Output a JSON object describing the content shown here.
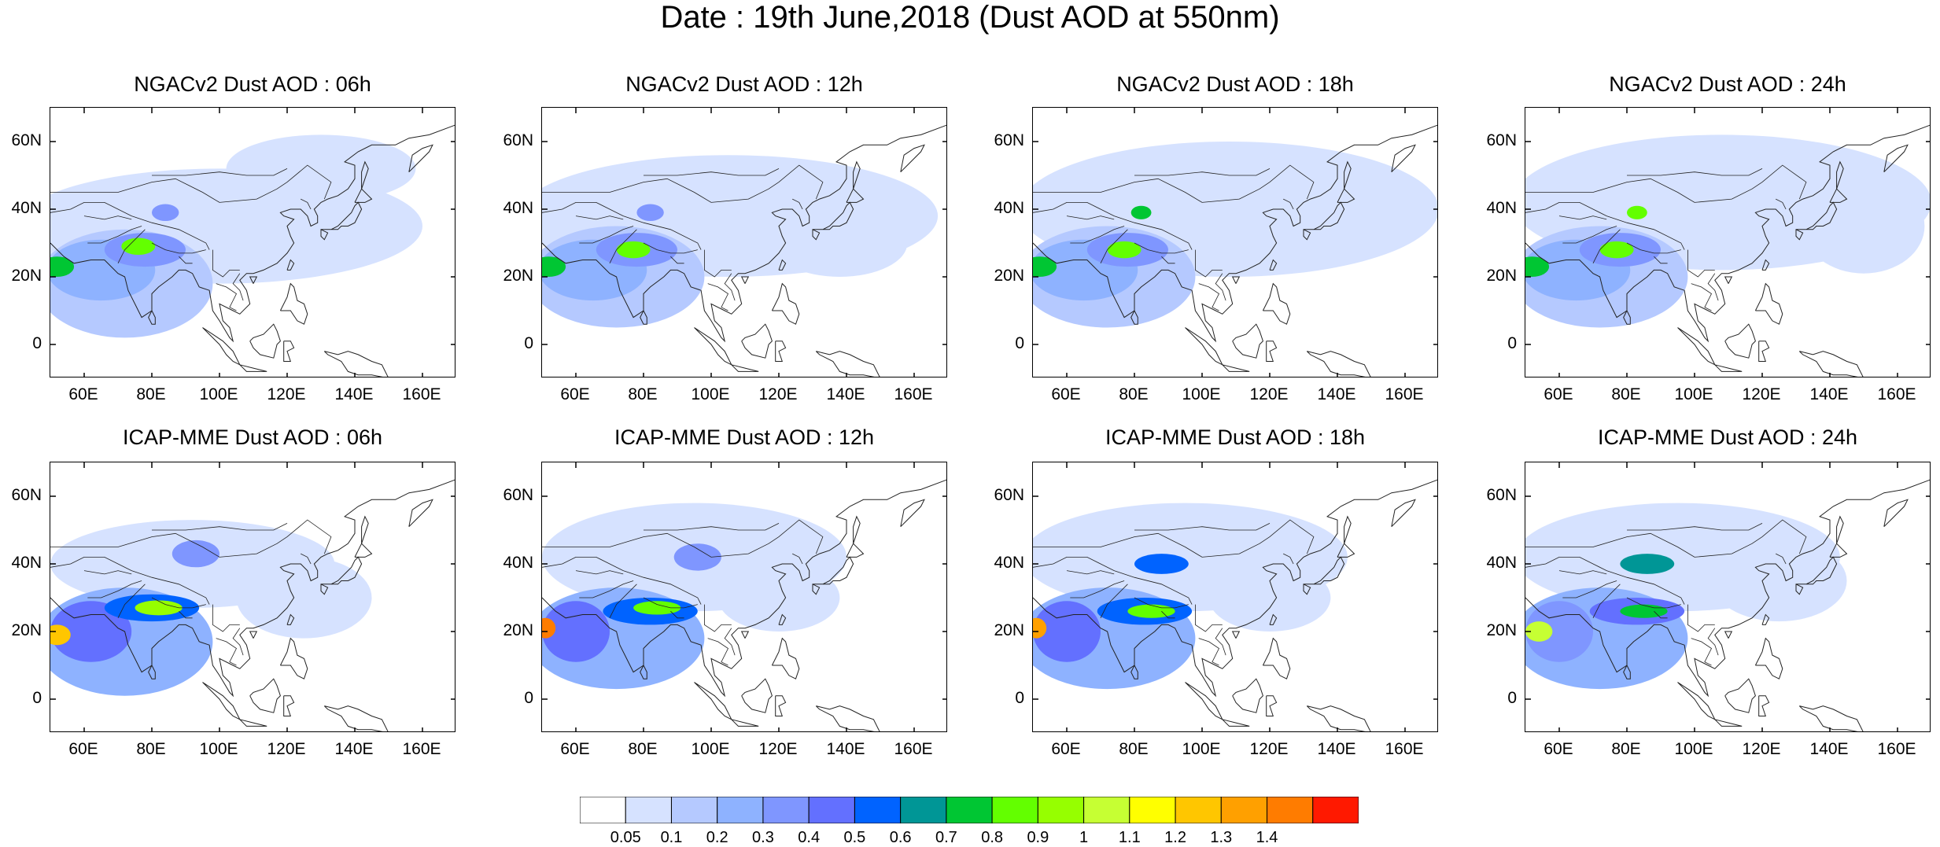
{
  "figure": {
    "title": "Date : 19th June,2018 (Dust AOD at 550nm)"
  },
  "panels": [
    {
      "title": "NGACv2 Dust AOD : 06h",
      "row": 0,
      "col": 0
    },
    {
      "title": "NGACv2 Dust AOD : 12h",
      "row": 0,
      "col": 1
    },
    {
      "title": "NGACv2 Dust AOD : 18h",
      "row": 0,
      "col": 2
    },
    {
      "title": "NGACv2 Dust AOD : 24h",
      "row": 0,
      "col": 3
    },
    {
      "title": "ICAP-MME Dust AOD : 06h",
      "row": 1,
      "col": 0
    },
    {
      "title": "ICAP-MME Dust AOD : 12h",
      "row": 1,
      "col": 1
    },
    {
      "title": "ICAP-MME Dust AOD : 18h",
      "row": 1,
      "col": 2
    },
    {
      "title": "ICAP-MME Dust AOD : 24h",
      "row": 1,
      "col": 3
    }
  ],
  "axes": {
    "lon_range": [
      50,
      170
    ],
    "lat_range": [
      -10,
      70
    ],
    "x_ticks": [
      {
        "value": 60,
        "label": "60E"
      },
      {
        "value": 80,
        "label": "80E"
      },
      {
        "value": 100,
        "label": "100E"
      },
      {
        "value": 120,
        "label": "120E"
      },
      {
        "value": 140,
        "label": "140E"
      },
      {
        "value": 160,
        "label": "160E"
      }
    ],
    "y_ticks": [
      {
        "value": 60,
        "label": "60N"
      },
      {
        "value": 40,
        "label": "40N"
      },
      {
        "value": 20,
        "label": "20N"
      },
      {
        "value": 0,
        "label": "0"
      }
    ]
  },
  "colorbar": {
    "colors": [
      "#ffffff",
      "#d6e2ff",
      "#b5c9ff",
      "#8eb2ff",
      "#7f96ff",
      "#6370ff",
      "#0063ff",
      "#009696",
      "#00c633",
      "#63ff00",
      "#96ff00",
      "#c6ff33",
      "#ffff00",
      "#ffc600",
      "#ffa000",
      "#ff7c00",
      "#ff1900"
    ],
    "levels": [
      "0.05",
      "0.1",
      "0.2",
      "0.3",
      "0.4",
      "0.5",
      "0.6",
      "0.7",
      "0.8",
      "0.9",
      "1",
      "1.1",
      "1.2",
      "1.3",
      "1.4"
    ]
  },
  "chart_data": {
    "type": "heatmap",
    "variable": "Dust AOD at 550nm",
    "date": "19th June,2018",
    "models": [
      "NGACv2",
      "ICAP-MME"
    ],
    "forecast_hours": [
      "06h",
      "12h",
      "18h",
      "24h"
    ],
    "x_range": [
      50,
      170
    ],
    "y_range": [
      -10,
      70
    ],
    "ngac_fields": [
      {
        "hour": "06h",
        "blobs": [
          {
            "lon": 100,
            "lat": 35,
            "rx": 60,
            "ry": 17,
            "level": 1
          },
          {
            "lon": 130,
            "lat": 52,
            "rx": 28,
            "ry": 10,
            "level": 1
          },
          {
            "lon": 72,
            "lat": 18,
            "rx": 26,
            "ry": 16,
            "level": 2
          },
          {
            "lon": 65,
            "lat": 22,
            "rx": 16,
            "ry": 9,
            "level": 3
          },
          {
            "lon": 78,
            "lat": 28,
            "rx": 12,
            "ry": 5,
            "level": 4
          },
          {
            "lon": 76,
            "lat": 29,
            "rx": 5,
            "ry": 2.5,
            "level": 9
          },
          {
            "lon": 52,
            "lat": 23,
            "rx": 5,
            "ry": 3,
            "level": 8
          },
          {
            "lon": 84,
            "lat": 39,
            "rx": 4,
            "ry": 2.5,
            "level": 4
          }
        ]
      },
      {
        "hour": "12h",
        "blobs": [
          {
            "lon": 105,
            "lat": 38,
            "rx": 62,
            "ry": 18,
            "level": 1
          },
          {
            "lon": 138,
            "lat": 30,
            "rx": 20,
            "ry": 10,
            "level": 1
          },
          {
            "lon": 72,
            "lat": 20,
            "rx": 26,
            "ry": 15,
            "level": 2
          },
          {
            "lon": 65,
            "lat": 22,
            "rx": 16,
            "ry": 9,
            "level": 3
          },
          {
            "lon": 78,
            "lat": 28,
            "rx": 12,
            "ry": 5,
            "level": 4
          },
          {
            "lon": 77,
            "lat": 28,
            "rx": 5,
            "ry": 2.5,
            "level": 9
          },
          {
            "lon": 52,
            "lat": 23,
            "rx": 5,
            "ry": 3,
            "level": 8
          },
          {
            "lon": 82,
            "lat": 39,
            "rx": 4,
            "ry": 2.5,
            "level": 4
          }
        ]
      },
      {
        "hour": "18h",
        "blobs": [
          {
            "lon": 108,
            "lat": 40,
            "rx": 62,
            "ry": 20,
            "level": 1
          },
          {
            "lon": 140,
            "lat": 40,
            "rx": 22,
            "ry": 16,
            "level": 1
          },
          {
            "lon": 72,
            "lat": 20,
            "rx": 26,
            "ry": 15,
            "level": 2
          },
          {
            "lon": 65,
            "lat": 22,
            "rx": 16,
            "ry": 9,
            "level": 3
          },
          {
            "lon": 78,
            "lat": 28,
            "rx": 12,
            "ry": 5,
            "level": 4
          },
          {
            "lon": 77,
            "lat": 28,
            "rx": 5,
            "ry": 2.5,
            "level": 9
          },
          {
            "lon": 52,
            "lat": 23,
            "rx": 5,
            "ry": 3,
            "level": 8
          },
          {
            "lon": 82,
            "lat": 39,
            "rx": 3,
            "ry": 2,
            "level": 8
          }
        ]
      },
      {
        "hour": "24h",
        "blobs": [
          {
            "lon": 108,
            "lat": 42,
            "rx": 62,
            "ry": 20,
            "level": 1
          },
          {
            "lon": 150,
            "lat": 35,
            "rx": 18,
            "ry": 14,
            "level": 1
          },
          {
            "lon": 72,
            "lat": 20,
            "rx": 26,
            "ry": 15,
            "level": 2
          },
          {
            "lon": 65,
            "lat": 22,
            "rx": 16,
            "ry": 9,
            "level": 3
          },
          {
            "lon": 78,
            "lat": 28,
            "rx": 12,
            "ry": 5,
            "level": 4
          },
          {
            "lon": 77,
            "lat": 28,
            "rx": 5,
            "ry": 2.5,
            "level": 9
          },
          {
            "lon": 52,
            "lat": 23,
            "rx": 5,
            "ry": 3,
            "level": 8
          },
          {
            "lon": 83,
            "lat": 39,
            "rx": 3,
            "ry": 2,
            "level": 9
          }
        ]
      }
    ],
    "icap_fields": [
      {
        "hour": "06h",
        "blobs": [
          {
            "lon": 92,
            "lat": 40,
            "rx": 42,
            "ry": 13,
            "level": 1
          },
          {
            "lon": 125,
            "lat": 30,
            "rx": 20,
            "ry": 12,
            "level": 1
          },
          {
            "lon": 72,
            "lat": 17,
            "rx": 26,
            "ry": 16,
            "level": 3
          },
          {
            "lon": 62,
            "lat": 20,
            "rx": 12,
            "ry": 9,
            "level": 5
          },
          {
            "lon": 80,
            "lat": 27,
            "rx": 14,
            "ry": 4,
            "level": 6
          },
          {
            "lon": 82,
            "lat": 27,
            "rx": 7,
            "ry": 2.2,
            "level": 10
          },
          {
            "lon": 52,
            "lat": 19,
            "rx": 4,
            "ry": 3,
            "level": 13
          },
          {
            "lon": 93,
            "lat": 43,
            "rx": 7,
            "ry": 4,
            "level": 4
          }
        ]
      },
      {
        "hour": "12h",
        "blobs": [
          {
            "lon": 95,
            "lat": 42,
            "rx": 45,
            "ry": 16,
            "level": 1
          },
          {
            "lon": 120,
            "lat": 30,
            "rx": 18,
            "ry": 10,
            "level": 1
          },
          {
            "lon": 72,
            "lat": 18,
            "rx": 26,
            "ry": 15,
            "level": 3
          },
          {
            "lon": 60,
            "lat": 20,
            "rx": 10,
            "ry": 9,
            "level": 5
          },
          {
            "lon": 82,
            "lat": 26,
            "rx": 14,
            "ry": 4,
            "level": 6
          },
          {
            "lon": 84,
            "lat": 27,
            "rx": 7,
            "ry": 2,
            "level": 9
          },
          {
            "lon": 51,
            "lat": 21,
            "rx": 3,
            "ry": 3,
            "level": 15
          },
          {
            "lon": 96,
            "lat": 42,
            "rx": 7,
            "ry": 4,
            "level": 4
          }
        ]
      },
      {
        "hour": "18h",
        "blobs": [
          {
            "lon": 95,
            "lat": 42,
            "rx": 48,
            "ry": 16,
            "level": 1
          },
          {
            "lon": 120,
            "lat": 30,
            "rx": 18,
            "ry": 10,
            "level": 1
          },
          {
            "lon": 72,
            "lat": 18,
            "rx": 26,
            "ry": 15,
            "level": 3
          },
          {
            "lon": 60,
            "lat": 20,
            "rx": 10,
            "ry": 9,
            "level": 5
          },
          {
            "lon": 83,
            "lat": 26,
            "rx": 14,
            "ry": 4,
            "level": 6
          },
          {
            "lon": 85,
            "lat": 26,
            "rx": 7,
            "ry": 2,
            "level": 9
          },
          {
            "lon": 51,
            "lat": 21,
            "rx": 3,
            "ry": 3,
            "level": 14
          },
          {
            "lon": 88,
            "lat": 40,
            "rx": 8,
            "ry": 3,
            "level": 6
          }
        ]
      },
      {
        "hour": "24h",
        "blobs": [
          {
            "lon": 95,
            "lat": 42,
            "rx": 48,
            "ry": 16,
            "level": 1
          },
          {
            "lon": 125,
            "lat": 35,
            "rx": 20,
            "ry": 12,
            "level": 1
          },
          {
            "lon": 72,
            "lat": 18,
            "rx": 26,
            "ry": 15,
            "level": 3
          },
          {
            "lon": 60,
            "lat": 20,
            "rx": 10,
            "ry": 9,
            "level": 4
          },
          {
            "lon": 83,
            "lat": 26,
            "rx": 14,
            "ry": 4,
            "level": 5
          },
          {
            "lon": 85,
            "lat": 26,
            "rx": 7,
            "ry": 2,
            "level": 8
          },
          {
            "lon": 54,
            "lat": 20,
            "rx": 4,
            "ry": 3,
            "level": 11
          },
          {
            "lon": 86,
            "lat": 40,
            "rx": 8,
            "ry": 3,
            "level": 7
          }
        ]
      }
    ]
  }
}
